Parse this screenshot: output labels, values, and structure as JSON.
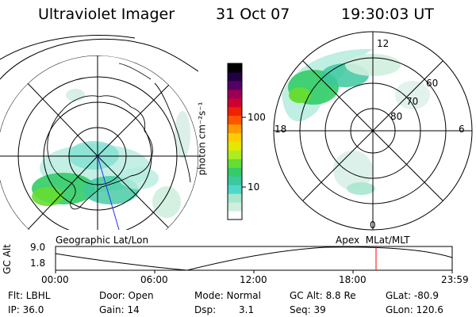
{
  "header": {
    "instrument": "Ultraviolet Imager",
    "date": "31 Oct 07",
    "time": "19:30:03 UT"
  },
  "colorbar": {
    "unit_label": "photon cm⁻²s⁻¹",
    "ticks": [
      "100",
      "10"
    ],
    "colors": [
      "#ffffff",
      "#cfeede",
      "#a8e6cf",
      "#4fd8c9",
      "#3cc8a0",
      "#33cc66",
      "#66dd33",
      "#aaee22",
      "#e6e600",
      "#ffcc00",
      "#ff9900",
      "#ff5500",
      "#ee2200",
      "#cc0033",
      "#990055",
      "#550066",
      "#220044",
      "#000000"
    ]
  },
  "left_map": {
    "label": "Geographic Lat/Lon"
  },
  "right_map": {
    "label": "Apex  MLat/MLT",
    "mlt_labels": {
      "top": "12",
      "bottom": "0",
      "left": "18",
      "right": "6"
    },
    "lat_labels": [
      "60",
      "70",
      "80"
    ]
  },
  "altitude_plot": {
    "ylabel": "GC Alt",
    "ytick_high": "9.0",
    "ytick_low": "1.8",
    "x_ticks": [
      "00:00",
      "06:00",
      "12:00",
      "18:00",
      "23:59"
    ],
    "current_time_marker": "19:30",
    "marker_color": "#ff0000"
  },
  "info": {
    "filter": "Flt: LBHL",
    "ip": "IP: 36.0",
    "door": "Door: Open",
    "gain": "Gain: 14",
    "mode": "Mode: Normal",
    "dsp_label": "Dsp:",
    "dsp_value": "3.1",
    "gc_alt": "GC Alt: 8.8 Re",
    "seq": "Seq: 39",
    "glat": "GLat: -80.9",
    "glon": "GLon: 120.6"
  }
}
